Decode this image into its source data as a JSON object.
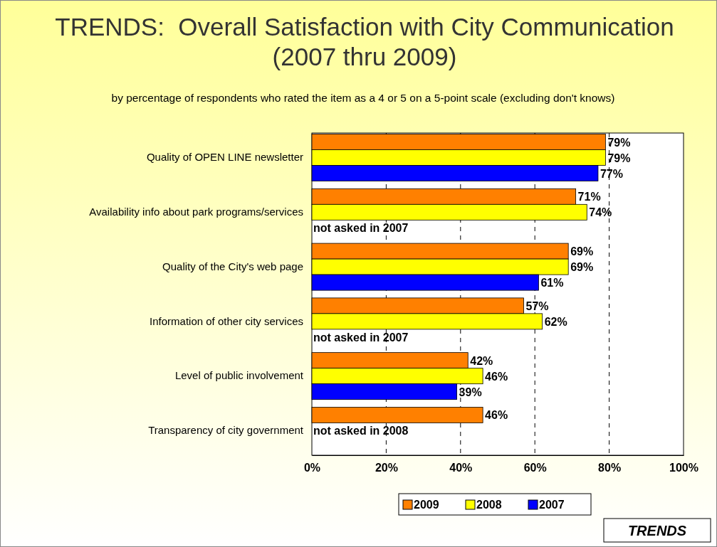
{
  "chart_data": {
    "type": "bar",
    "orientation": "horizontal",
    "title": "TRENDS:  Overall Satisfaction with City Communication\n(2007 thru 2009)",
    "subtitle": "by percentage of respondents who rated the item as a 4 or 5 on a 5-point scale (excluding don't knows)",
    "categories": [
      "Quality of OPEN LINE newsletter",
      "Availability info about park programs/services",
      "Quality of the City's web page",
      "Information of other city services",
      "Level of public involvement",
      "Transparency of city government"
    ],
    "series": [
      {
        "name": "2009",
        "color": "#ff8000",
        "values": [
          79,
          71,
          69,
          57,
          42,
          46
        ],
        "value_labels": [
          "79%",
          "71%",
          "69%",
          "57%",
          "42%",
          "46%"
        ]
      },
      {
        "name": "2008",
        "color": "#ffff00",
        "values": [
          79,
          74,
          69,
          62,
          46,
          null
        ],
        "value_labels": [
          "79%",
          "74%",
          "69%",
          "62%",
          "46%",
          null
        ]
      },
      {
        "name": "2007",
        "color": "#0000ff",
        "values": [
          77,
          null,
          61,
          null,
          39,
          null
        ],
        "value_labels": [
          "77%",
          null,
          "61%",
          null,
          "39%",
          null
        ]
      }
    ],
    "xlim": [
      0,
      100
    ],
    "xticks": [
      {
        "value": 0,
        "label": "0%"
      },
      {
        "value": 20,
        "label": "20%"
      },
      {
        "value": 40,
        "label": "40%"
      },
      {
        "value": 60,
        "label": "60%"
      },
      {
        "value": 80,
        "label": "80%"
      },
      {
        "value": 100,
        "label": "100%"
      }
    ],
    "grid": "x",
    "legend": "bottom",
    "annotations": [
      "not asked in 2007",
      "not asked in 2007",
      "not asked in 2008",
      "TRENDS"
    ]
  }
}
